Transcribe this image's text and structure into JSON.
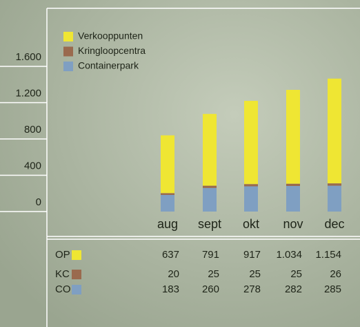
{
  "chart_data": {
    "type": "stacked_bar",
    "categories": [
      "aug",
      "sept",
      "okt",
      "nov",
      "dec"
    ],
    "series": [
      {
        "name": "Verkooppunten",
        "code": "OP",
        "color": "#efe633",
        "values": [
          637,
          791,
          917,
          1034,
          1154
        ],
        "value_labels": [
          "637",
          "791",
          "917",
          "1.034",
          "1.154"
        ]
      },
      {
        "name": "Kringloopcentra",
        "code": "KC",
        "color": "#9a6a4e",
        "values": [
          20,
          25,
          25,
          25,
          26
        ]
      },
      {
        "name": "Containerpark",
        "code": "CO",
        "color": "#7f9fc2",
        "values": [
          183,
          260,
          278,
          282,
          285
        ]
      }
    ],
    "ylim": [
      0,
      1750
    ],
    "yticks": [
      0,
      400,
      800,
      {
        "value": 1200,
        "label": "1.200"
      },
      {
        "value": 1600,
        "label": "1.600"
      }
    ]
  }
}
